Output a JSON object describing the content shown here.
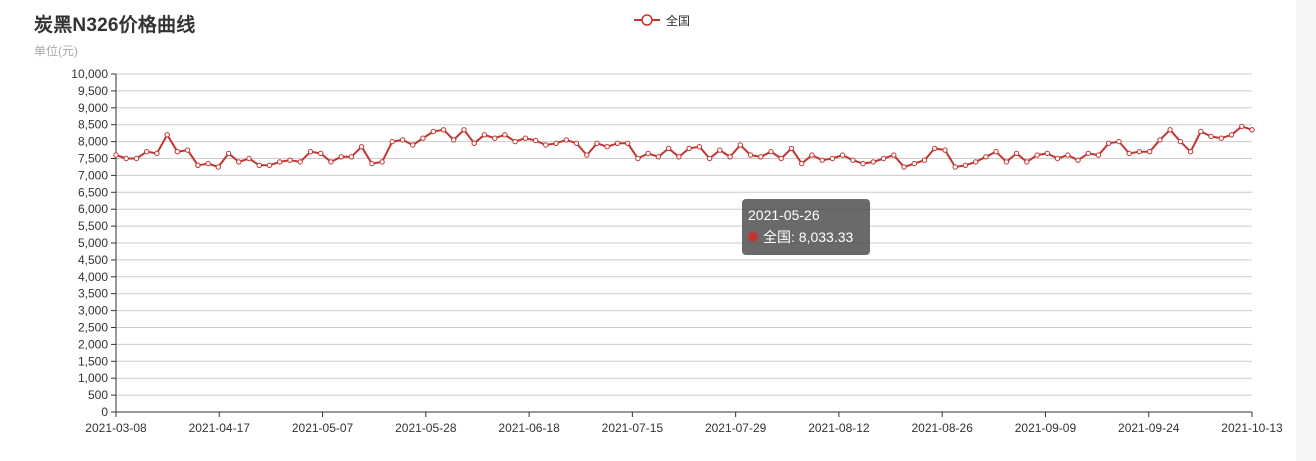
{
  "title": "炭黑N326价格曲线",
  "subtitle": "单位(元)",
  "colors": {
    "series": "#c23531",
    "axis": "#333333",
    "grid": "#cccccc",
    "label": "#333333"
  },
  "legend": {
    "items": [
      {
        "name": "全国",
        "icon": "line-circle-icon"
      }
    ]
  },
  "tooltip": {
    "date": "2021-05-26",
    "series": "全国",
    "value_text": "8,033.33"
  },
  "chart_data": {
    "type": "line",
    "ylim": [
      0,
      10000
    ],
    "y_ticks": [
      0,
      500,
      1000,
      1500,
      2000,
      2500,
      3000,
      3500,
      4000,
      4500,
      5000,
      5500,
      6000,
      6500,
      7000,
      7500,
      8000,
      8500,
      9000,
      9500,
      10000
    ],
    "y_tick_labels": [
      "0",
      "500",
      "1,000",
      "1,500",
      "2,000",
      "2,500",
      "3,000",
      "3,500",
      "4,000",
      "4,500",
      "5,000",
      "5,500",
      "6,000",
      "6,500",
      "7,000",
      "7,500",
      "8,000",
      "8,500",
      "9,000",
      "9,500",
      "10,000"
    ],
    "x_tick_labels": [
      "2021-03-08",
      "2021-04-17",
      "2021-05-07",
      "2021-05-28",
      "2021-06-18",
      "2021-07-15",
      "2021-07-29",
      "2021-08-12",
      "2021-08-26",
      "2021-09-09",
      "2021-09-24",
      "2021-10-13"
    ],
    "grid": true,
    "legend_position": "top-center",
    "series": [
      {
        "name": "全国",
        "values": [
          7600,
          7500,
          7500,
          7700,
          7650,
          8200,
          7700,
          7750,
          7300,
          7350,
          7250,
          7650,
          7400,
          7500,
          7300,
          7300,
          7400,
          7450,
          7400,
          7700,
          7650,
          7400,
          7550,
          7550,
          7850,
          7350,
          7400,
          8000,
          8050,
          7900,
          8100,
          8300,
          8350,
          8050,
          8350,
          7950,
          8200,
          8100,
          8200,
          8000,
          8100,
          8033.33,
          7900,
          7950,
          8050,
          7950,
          7600,
          7950,
          7850,
          7950,
          7950,
          7500,
          7650,
          7550,
          7800,
          7550,
          7800,
          7850,
          7500,
          7750,
          7550,
          7900,
          7600,
          7550,
          7700,
          7500,
          7800,
          7350,
          7600,
          7450,
          7500,
          7600,
          7450,
          7350,
          7400,
          7500,
          7600,
          7250,
          7350,
          7450,
          7800,
          7750,
          7250,
          7300,
          7400,
          7550,
          7700,
          7400,
          7650,
          7400,
          7600,
          7650,
          7500,
          7600,
          7450,
          7650,
          7600,
          7950,
          8000,
          7650,
          7700,
          7700,
          8050,
          8350,
          8000,
          7700,
          8300,
          8150,
          8100,
          8200,
          8450,
          8350
        ]
      }
    ]
  }
}
